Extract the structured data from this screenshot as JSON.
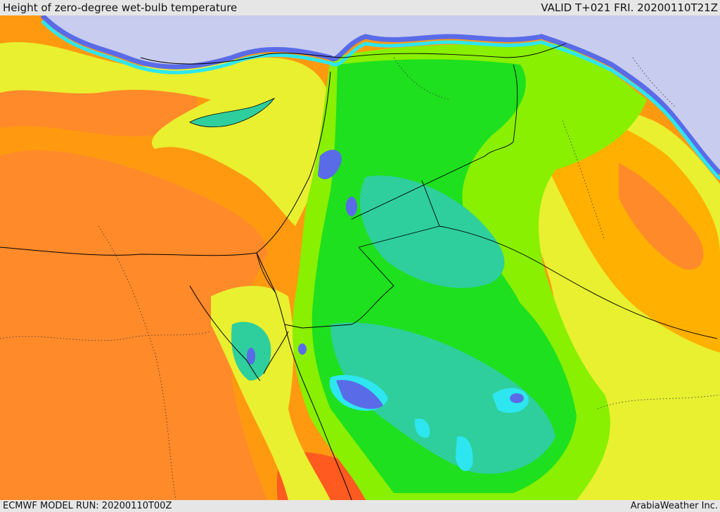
{
  "header": {
    "title": "Height of zero-degree wet-bulb temperature",
    "valid": "VALID T+021 FRI. 20200110T21Z"
  },
  "footer": {
    "model_run": "ECMWF MODEL RUN: 20200110T00Z",
    "credit": "ArabiaWeather Inc."
  },
  "palette": {
    "sea_cold": "#c8ccee",
    "blue": "#5a6be8",
    "cyan": "#2ee6f0",
    "teal": "#2ecf9c",
    "green": "#1ee01e",
    "lime": "#88f000",
    "yellow_green": "#c8f020",
    "yellow": "#e8f030",
    "orange_light": "#ffb000",
    "orange": "#ff9a10",
    "orange_dark": "#ff8a2a",
    "red_orange": "#ff5a20"
  }
}
